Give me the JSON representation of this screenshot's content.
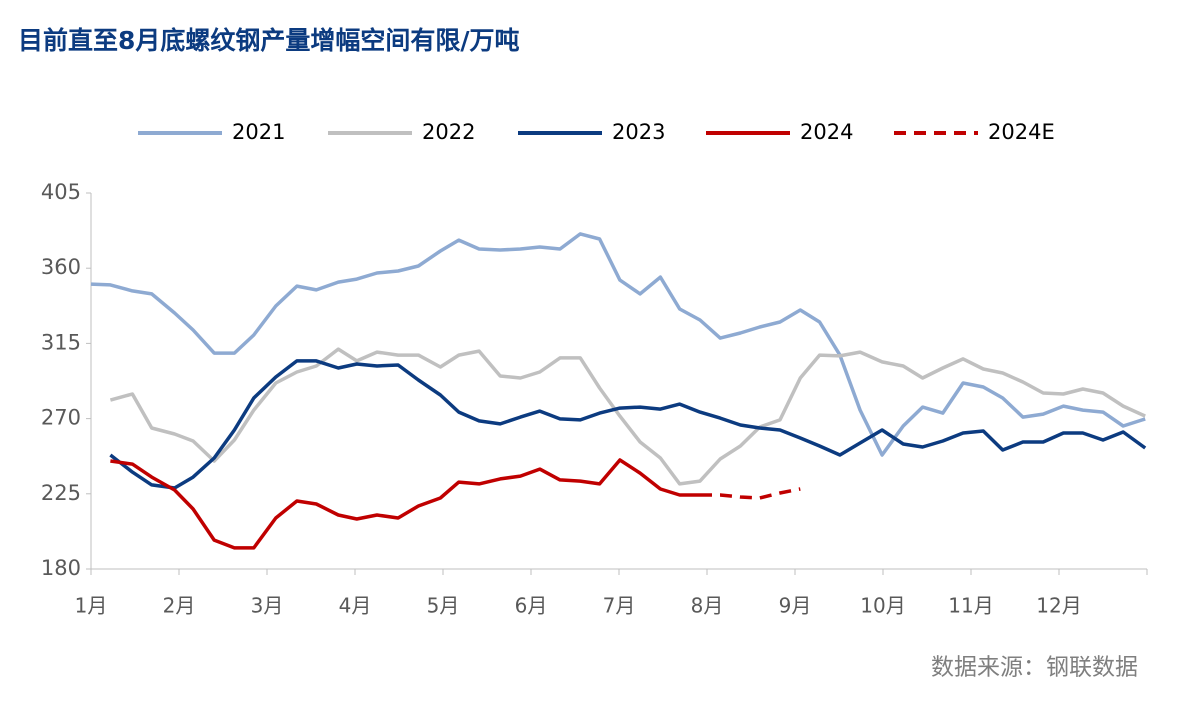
{
  "chart_data": {
    "type": "line",
    "title": "目前直至8月底螺纹钢产量增幅空间有限/万吨",
    "source": "数据来源：钢联数据",
    "x": [
      1.0,
      1.22,
      1.47,
      1.69,
      1.95,
      2.16,
      2.4,
      2.63,
      2.85,
      3.1,
      3.34,
      3.56,
      3.81,
      4.02,
      4.25,
      4.49,
      4.72,
      4.97,
      5.18,
      5.41,
      5.65,
      5.88,
      6.1,
      6.33,
      6.56,
      6.78,
      7.01,
      7.24,
      7.47,
      7.69,
      7.92,
      8.15,
      8.38,
      8.6,
      8.83,
      9.06,
      9.28,
      9.51,
      9.74,
      9.99,
      10.23,
      10.45,
      10.68,
      10.91,
      11.14,
      11.36,
      11.59,
      11.82,
      12.05,
      12.27,
      12.5,
      12.73,
      12.98
    ],
    "xlim": [
      1,
      13
    ],
    "xticks": [
      {
        "value": 1,
        "label": "1月"
      },
      {
        "value": 2,
        "label": "2月"
      },
      {
        "value": 3,
        "label": "3月"
      },
      {
        "value": 4,
        "label": "4月"
      },
      {
        "value": 5,
        "label": "5月"
      },
      {
        "value": 6,
        "label": "6月"
      },
      {
        "value": 7,
        "label": "7月"
      },
      {
        "value": 8,
        "label": "8月"
      },
      {
        "value": 9,
        "label": "9月"
      },
      {
        "value": 10,
        "label": "10月"
      },
      {
        "value": 11,
        "label": "11月"
      },
      {
        "value": 12,
        "label": "12月"
      }
    ],
    "ylim": [
      180,
      405
    ],
    "yticks": [
      180,
      225,
      270,
      315,
      360,
      405
    ],
    "grid": false,
    "legend": "top",
    "series": [
      {
        "name": "2021",
        "color": "#8eaad2",
        "dash": false,
        "values": [
          350.5,
          350,
          346.4,
          344.6,
          333.2,
          323,
          309.2,
          309.2,
          320,
          337.4,
          349.3,
          347,
          351.7,
          353.5,
          357.1,
          358.3,
          361.3,
          370.3,
          376.8,
          371.5,
          370.9,
          371.5,
          372.7,
          371.5,
          380.5,
          377.5,
          352.9,
          344.6,
          354.7,
          335.6,
          329,
          318.2,
          321.2,
          324.8,
          327.8,
          335,
          327.8,
          308,
          275.1,
          248.2,
          265.6,
          276.9,
          273.3,
          291.3,
          288.9,
          282.3,
          270.9,
          272.7,
          277.5,
          275.1,
          273.9,
          265.6,
          269.8
        ]
      },
      {
        "name": "2022",
        "color": "#c0c0c0",
        "dash": false,
        "values": [
          null,
          281.1,
          284.7,
          264.4,
          260.8,
          256.6,
          244.6,
          257.2,
          275.1,
          291.3,
          297.9,
          301.5,
          311.6,
          304.5,
          309.8,
          308,
          308,
          300.9,
          308,
          310.4,
          295.5,
          294.3,
          297.9,
          306.3,
          306.3,
          288.3,
          271.5,
          256,
          246.4,
          230.9,
          232.6,
          245.8,
          253.6,
          265,
          269.2,
          294.3,
          308,
          307.5,
          309.8,
          303.9,
          301.5,
          294.3,
          300.3,
          305.7,
          299.7,
          297.3,
          291.9,
          285.3,
          284.7,
          287.7,
          285.3,
          277.5,
          271.5
        ]
      },
      {
        "name": "2023",
        "color": "#0c3b80",
        "dash": false,
        "values": [
          null,
          248.2,
          238,
          230.3,
          228.5,
          235,
          246.4,
          263.2,
          282.3,
          294.9,
          304.5,
          304.5,
          300.3,
          302.7,
          301.5,
          302.1,
          293.1,
          284.1,
          273.9,
          268.6,
          266.8,
          270.9,
          274.5,
          269.8,
          269.2,
          273.3,
          276.3,
          276.9,
          275.7,
          278.7,
          273.9,
          270.3,
          266.2,
          264.4,
          263.2,
          258.4,
          253.6,
          248.2,
          255.4,
          263.2,
          254.8,
          253,
          256.6,
          261.4,
          262.6,
          251.2,
          256,
          256,
          261.4,
          261.4,
          257.2,
          262,
          252.4
        ]
      },
      {
        "name": "2024",
        "color": "#c00000",
        "dash": false,
        "values": [
          null,
          244.6,
          242.8,
          235,
          227.3,
          215.9,
          197.3,
          192.6,
          192.6,
          210.5,
          220.7,
          218.9,
          212.3,
          209.9,
          212.3,
          210.5,
          217.7,
          222.5,
          232,
          230.9,
          233.9,
          235.6,
          239.8,
          233.3,
          232.6,
          230.9,
          245.2,
          237.4,
          227.9,
          224.3,
          224.3,
          null,
          null,
          null,
          null,
          null,
          null,
          null,
          null,
          null,
          null,
          null,
          null,
          null,
          null,
          null,
          null,
          null,
          null,
          null,
          null,
          null,
          null
        ]
      },
      {
        "name": "2024E",
        "color": "#c00000",
        "dash": true,
        "values": [
          null,
          null,
          null,
          null,
          null,
          null,
          null,
          null,
          null,
          null,
          null,
          null,
          null,
          null,
          null,
          null,
          null,
          null,
          null,
          null,
          null,
          null,
          null,
          null,
          null,
          null,
          null,
          null,
          null,
          null,
          224.3,
          224.3,
          223.1,
          222.5,
          225.5,
          227.9,
          null,
          null,
          null,
          null,
          null,
          null,
          null,
          null,
          null,
          null,
          null,
          null,
          null,
          null,
          null,
          null,
          null
        ]
      }
    ]
  }
}
